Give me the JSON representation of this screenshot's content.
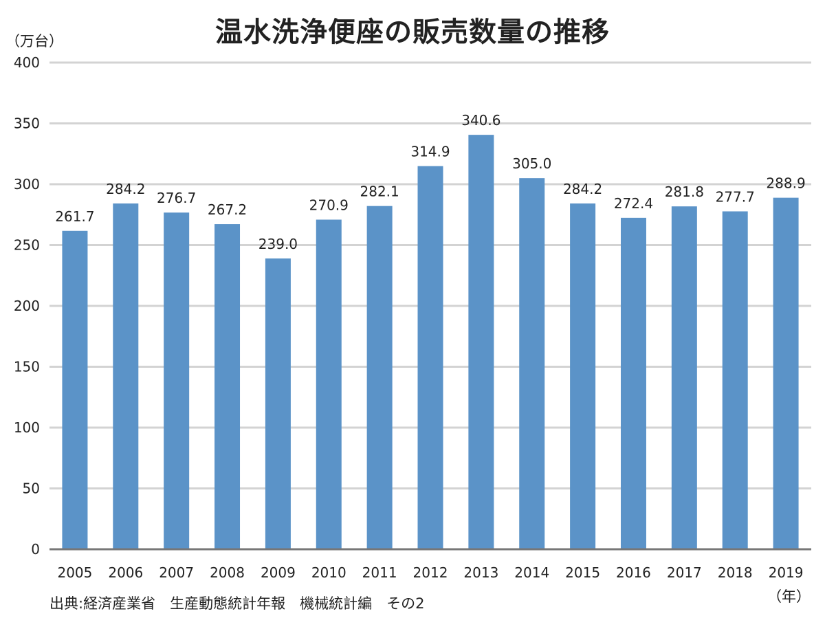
{
  "chart_data": {
    "type": "bar",
    "title": "温水洗浄便座の販売数量の推移",
    "ylabel": "（万台）",
    "xlabel": "（年）",
    "source": "出典:経済産業省　生産動態統計年報　機械統計編　その2",
    "categories": [
      "2005",
      "2006",
      "2007",
      "2008",
      "2009",
      "2010",
      "2011",
      "2012",
      "2013",
      "2014",
      "2015",
      "2016",
      "2017",
      "2018",
      "2019"
    ],
    "values": [
      261.7,
      284.2,
      276.7,
      267.2,
      239.0,
      270.9,
      282.1,
      314.9,
      340.6,
      305.0,
      284.2,
      272.4,
      281.8,
      277.7,
      288.9
    ],
    "value_labels": [
      "261.7",
      "284.2",
      "276.7",
      "267.2",
      "239.0",
      "270.9",
      "282.1",
      "314.9",
      "340.6",
      "305.0",
      "284.2",
      "272.4",
      "281.8",
      "277.7",
      "288.9"
    ],
    "ylim": [
      0,
      400
    ],
    "yticks": [
      "0",
      "50",
      "100",
      "150",
      "200",
      "250",
      "300",
      "350",
      "400"
    ],
    "grid": true,
    "legend": "none",
    "colors": {
      "bar": "#5b93c8",
      "grid": "#d3d3d3",
      "baseline": "#777777"
    }
  }
}
